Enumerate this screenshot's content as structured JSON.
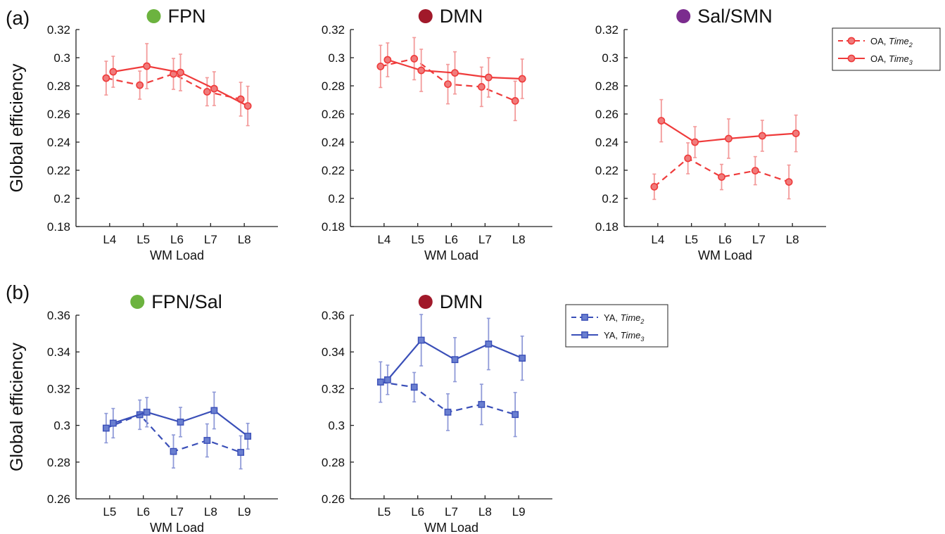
{
  "panel_labels": [
    "(a)",
    "(b)"
  ],
  "colors": {
    "oa_line": "#ef3b3b",
    "oa_marker_fill": "#f07b7b",
    "oa_error": "#f39a9a",
    "ya_line": "#3a4fb8",
    "ya_marker_fill": "#6a7fd0",
    "ya_error": "#8f9ad8",
    "fpn_dot": "#6cb33f",
    "dmn_dot": "#a1192a",
    "sal_dot": "#7b2c8e"
  },
  "legends": {
    "oa": {
      "entries": [
        {
          "prefix": "OA, ",
          "italic": "Time",
          "sub": "2",
          "style": "dashed",
          "marker": "circle"
        },
        {
          "prefix": "OA, ",
          "italic": "Time",
          "sub": "3",
          "style": "solid",
          "marker": "circle"
        }
      ]
    },
    "ya": {
      "entries": [
        {
          "prefix": "YA, ",
          "italic": "Time",
          "sub": "2",
          "style": "dashed",
          "marker": "square"
        },
        {
          "prefix": "YA, ",
          "italic": "Time",
          "sub": "3",
          "style": "solid",
          "marker": "square"
        }
      ]
    }
  },
  "chart_data": [
    {
      "type": "line",
      "title": "FPN",
      "title_dot": "fpn_dot",
      "group": "oa",
      "ylabel": "Global efficiency",
      "xlabel": "WM Load",
      "categories": [
        "L4",
        "L5",
        "L6",
        "L7",
        "L8"
      ],
      "ylim": [
        0.18,
        0.32
      ],
      "yticks": [
        0.18,
        0.2,
        0.22,
        0.24,
        0.26,
        0.28,
        0.3,
        0.32
      ],
      "ytick_labels": [
        "0.18",
        "0.2",
        "0.22",
        "0.24",
        "0.26",
        "0.28",
        "0.3",
        "0.32"
      ],
      "series": [
        {
          "style": "dashed",
          "values": [
            0.2855,
            0.2805,
            0.2885,
            0.2758,
            0.2705
          ],
          "errors": [
            0.012,
            0.01,
            0.011,
            0.01,
            0.012
          ]
        },
        {
          "style": "solid",
          "values": [
            0.29,
            0.294,
            0.2895,
            0.278,
            0.2657
          ],
          "errors": [
            0.011,
            0.016,
            0.013,
            0.012,
            0.014
          ]
        }
      ]
    },
    {
      "type": "line",
      "title": "DMN",
      "title_dot": "dmn_dot",
      "group": "oa",
      "ylabel": "",
      "xlabel": "WM Load",
      "categories": [
        "L4",
        "L5",
        "L6",
        "L7",
        "L8"
      ],
      "ylim": [
        0.18,
        0.32
      ],
      "yticks": [
        0.18,
        0.2,
        0.22,
        0.24,
        0.26,
        0.28,
        0.3,
        0.32
      ],
      "ytick_labels": [
        "0.18",
        "0.2",
        "0.22",
        "0.24",
        "0.26",
        "0.28",
        "0.3",
        "0.32"
      ],
      "series": [
        {
          "style": "dashed",
          "values": [
            0.2938,
            0.2993,
            0.2812,
            0.2793,
            0.2693
          ],
          "errors": [
            0.015,
            0.015,
            0.014,
            0.014,
            0.014
          ]
        },
        {
          "style": "solid",
          "values": [
            0.2985,
            0.291,
            0.2892,
            0.286,
            0.285
          ],
          "errors": [
            0.012,
            0.015,
            0.015,
            0.014,
            0.014
          ]
        }
      ]
    },
    {
      "type": "line",
      "title": "Sal/SMN",
      "title_dot": "sal_dot",
      "group": "oa",
      "ylabel": "",
      "xlabel": "WM Load",
      "categories": [
        "L4",
        "L5",
        "L6",
        "L7",
        "L8"
      ],
      "ylim": [
        0.18,
        0.32
      ],
      "yticks": [
        0.18,
        0.2,
        0.22,
        0.24,
        0.26,
        0.28,
        0.3,
        0.32
      ],
      "ytick_labels": [
        "0.18",
        "0.2",
        "0.22",
        "0.24",
        "0.26",
        "0.28",
        "0.3",
        "0.32"
      ],
      "series": [
        {
          "style": "dashed",
          "values": [
            0.2083,
            0.2285,
            0.2152,
            0.2197,
            0.2117
          ],
          "errors": [
            0.009,
            0.011,
            0.009,
            0.01,
            0.012
          ]
        },
        {
          "style": "solid",
          "values": [
            0.2552,
            0.24,
            0.2425,
            0.2445,
            0.2462
          ],
          "errors": [
            0.015,
            0.011,
            0.014,
            0.011,
            0.013
          ]
        }
      ]
    },
    {
      "type": "line",
      "title": "FPN/Sal",
      "title_dot": "fpn_dot",
      "group": "ya",
      "ylabel": "Global efficiency",
      "xlabel": "WM Load",
      "categories": [
        "L5",
        "L6",
        "L7",
        "L8",
        "L9"
      ],
      "ylim": [
        0.26,
        0.36
      ],
      "yticks": [
        0.26,
        0.28,
        0.3,
        0.32,
        0.34,
        0.36
      ],
      "ytick_labels": [
        "0.26",
        "0.28",
        "0.3",
        "0.32",
        "0.34",
        "0.36"
      ],
      "series": [
        {
          "style": "dashed",
          "values": [
            0.2985,
            0.3058,
            0.2858,
            0.2918,
            0.2853
          ],
          "errors": [
            0.008,
            0.008,
            0.009,
            0.009,
            0.009
          ]
        },
        {
          "style": "solid",
          "values": [
            0.3012,
            0.3072,
            0.3018,
            0.3081,
            0.2941
          ],
          "errors": [
            0.008,
            0.008,
            0.008,
            0.01,
            0.007
          ]
        }
      ]
    },
    {
      "type": "line",
      "title": "DMN",
      "title_dot": "dmn_dot",
      "group": "ya",
      "ylabel": "",
      "xlabel": "WM Load",
      "categories": [
        "L5",
        "L6",
        "L7",
        "L8",
        "L9"
      ],
      "ylim": [
        0.26,
        0.36
      ],
      "yticks": [
        0.26,
        0.28,
        0.3,
        0.32,
        0.34,
        0.36
      ],
      "ytick_labels": [
        "0.26",
        "0.28",
        "0.3",
        "0.32",
        "0.34",
        "0.36"
      ],
      "series": [
        {
          "style": "dashed",
          "values": [
            0.3236,
            0.3208,
            0.3072,
            0.3114,
            0.3059
          ],
          "errors": [
            0.011,
            0.008,
            0.01,
            0.011,
            0.012
          ]
        },
        {
          "style": "solid",
          "values": [
            0.3248,
            0.3464,
            0.3358,
            0.3443,
            0.3366
          ],
          "errors": [
            0.008,
            0.014,
            0.012,
            0.014,
            0.012
          ]
        }
      ]
    }
  ]
}
